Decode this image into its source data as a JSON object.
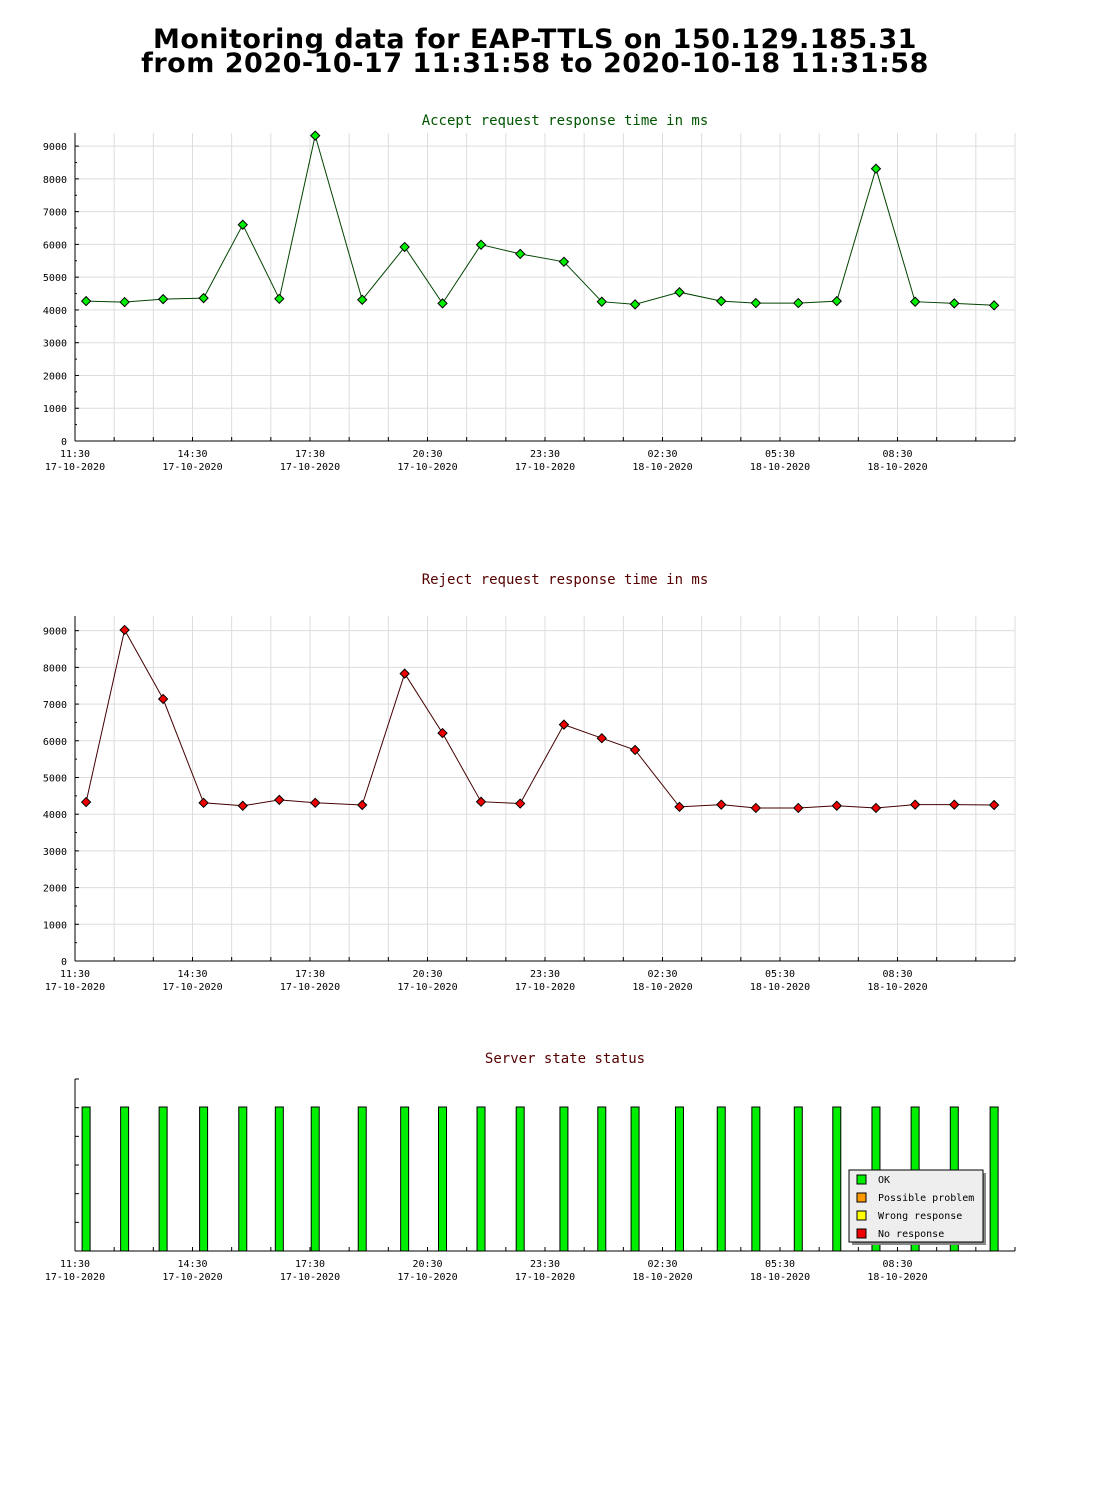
{
  "page": {
    "title_line1": "Monitoring data for EAP-TTLS on 150.129.185.31",
    "title_line2": "from 2020-10-17 11:31:58 to 2020-10-18 11:31:58"
  },
  "chart_data": [
    {
      "type": "line",
      "title": "Accept request response time in ms",
      "title_color": "#005500",
      "line_color": "#004400",
      "marker_color": "#00ee00",
      "x_range": [
        "2020-10-17 11:30",
        "2020-10-18 11:30"
      ],
      "x_ticks": [
        {
          "time": "11:30",
          "date": "17-10-2020"
        },
        {
          "time": "14:30",
          "date": "17-10-2020"
        },
        {
          "time": "17:30",
          "date": "17-10-2020"
        },
        {
          "time": "20:30",
          "date": "17-10-2020"
        },
        {
          "time": "23:30",
          "date": "17-10-2020"
        },
        {
          "time": "02:30",
          "date": "18-10-2020"
        },
        {
          "time": "05:30",
          "date": "18-10-2020"
        },
        {
          "time": "08:30",
          "date": "18-10-2020"
        }
      ],
      "ylim": [
        0,
        9400
      ],
      "y_ticks": [
        0,
        1000,
        2000,
        3000,
        4000,
        5000,
        6000,
        7000,
        8000,
        9000
      ],
      "grid": true,
      "points": [
        {
          "x": "2020-10-17 11:47",
          "y": 4270
        },
        {
          "x": "2020-10-17 12:46",
          "y": 4240
        },
        {
          "x": "2020-10-17 13:45",
          "y": 4330
        },
        {
          "x": "2020-10-17 14:47",
          "y": 4360
        },
        {
          "x": "2020-10-17 15:47",
          "y": 6600
        },
        {
          "x": "2020-10-17 16:43",
          "y": 4340
        },
        {
          "x": "2020-10-17 17:38",
          "y": 9320
        },
        {
          "x": "2020-10-17 18:50",
          "y": 4310
        },
        {
          "x": "2020-10-17 19:55",
          "y": 5920
        },
        {
          "x": "2020-10-17 20:53",
          "y": 4200
        },
        {
          "x": "2020-10-17 21:52",
          "y": 5990
        },
        {
          "x": "2020-10-17 22:52",
          "y": 5710
        },
        {
          "x": "2020-10-17 23:59",
          "y": 5470
        },
        {
          "x": "2020-10-18 00:57",
          "y": 4250
        },
        {
          "x": "2020-10-18 01:48",
          "y": 4170
        },
        {
          "x": "2020-10-18 02:56",
          "y": 4540
        },
        {
          "x": "2020-10-18 04:00",
          "y": 4270
        },
        {
          "x": "2020-10-18 04:53",
          "y": 4210
        },
        {
          "x": "2020-10-18 05:58",
          "y": 4210
        },
        {
          "x": "2020-10-18 06:57",
          "y": 4270
        },
        {
          "x": "2020-10-18 07:57",
          "y": 8310
        },
        {
          "x": "2020-10-18 08:57",
          "y": 4250
        },
        {
          "x": "2020-10-18 09:57",
          "y": 4200
        },
        {
          "x": "2020-10-18 10:58",
          "y": 4140
        }
      ]
    },
    {
      "type": "line",
      "title": "Reject request response time in ms",
      "title_color": "#550000",
      "line_color": "#440000",
      "marker_color": "#ee0000",
      "x_range": [
        "2020-10-17 11:30",
        "2020-10-18 11:30"
      ],
      "x_ticks": [
        {
          "time": "11:30",
          "date": "17-10-2020"
        },
        {
          "time": "14:30",
          "date": "17-10-2020"
        },
        {
          "time": "17:30",
          "date": "17-10-2020"
        },
        {
          "time": "20:30",
          "date": "17-10-2020"
        },
        {
          "time": "23:30",
          "date": "17-10-2020"
        },
        {
          "time": "02:30",
          "date": "18-10-2020"
        },
        {
          "time": "05:30",
          "date": "18-10-2020"
        },
        {
          "time": "08:30",
          "date": "18-10-2020"
        }
      ],
      "ylim": [
        0,
        9400
      ],
      "y_ticks": [
        0,
        1000,
        2000,
        3000,
        4000,
        5000,
        6000,
        7000,
        8000,
        9000
      ],
      "grid": true,
      "points": [
        {
          "x": "2020-10-17 11:47",
          "y": 4330
        },
        {
          "x": "2020-10-17 12:46",
          "y": 9020
        },
        {
          "x": "2020-10-17 13:45",
          "y": 7140
        },
        {
          "x": "2020-10-17 14:47",
          "y": 4310
        },
        {
          "x": "2020-10-17 15:47",
          "y": 4230
        },
        {
          "x": "2020-10-17 16:43",
          "y": 4390
        },
        {
          "x": "2020-10-17 17:38",
          "y": 4310
        },
        {
          "x": "2020-10-17 18:50",
          "y": 4250
        },
        {
          "x": "2020-10-17 19:55",
          "y": 7830
        },
        {
          "x": "2020-10-17 20:53",
          "y": 6210
        },
        {
          "x": "2020-10-17 21:52",
          "y": 4340
        },
        {
          "x": "2020-10-17 22:52",
          "y": 4290
        },
        {
          "x": "2020-10-17 23:59",
          "y": 6440
        },
        {
          "x": "2020-10-18 00:57",
          "y": 6070
        },
        {
          "x": "2020-10-18 01:48",
          "y": 5750
        },
        {
          "x": "2020-10-18 02:56",
          "y": 4200
        },
        {
          "x": "2020-10-18 04:00",
          "y": 4260
        },
        {
          "x": "2020-10-18 04:53",
          "y": 4170
        },
        {
          "x": "2020-10-18 05:58",
          "y": 4170
        },
        {
          "x": "2020-10-18 06:57",
          "y": 4230
        },
        {
          "x": "2020-10-18 07:57",
          "y": 4170
        },
        {
          "x": "2020-10-18 08:57",
          "y": 4260
        },
        {
          "x": "2020-10-18 09:57",
          "y": 4260
        },
        {
          "x": "2020-10-18 10:58",
          "y": 4250
        }
      ]
    },
    {
      "type": "bar",
      "title": "Server state status",
      "title_color": "#550000",
      "x_range": [
        "2020-10-17 11:30",
        "2020-10-18 11:30"
      ],
      "x_ticks": [
        {
          "time": "11:30",
          "date": "17-10-2020"
        },
        {
          "time": "14:30",
          "date": "17-10-2020"
        },
        {
          "time": "17:30",
          "date": "17-10-2020"
        },
        {
          "time": "20:30",
          "date": "17-10-2020"
        },
        {
          "time": "23:30",
          "date": "17-10-2020"
        },
        {
          "time": "02:30",
          "date": "18-10-2020"
        },
        {
          "time": "05:30",
          "date": "18-10-2020"
        },
        {
          "time": "08:30",
          "date": "18-10-2020"
        }
      ],
      "grid": false,
      "legend_position": "bottom-right",
      "legend": [
        {
          "label": "OK",
          "color": "#00ee00"
        },
        {
          "label": "Possible problem",
          "color": "#ff9900"
        },
        {
          "label": "Wrong response",
          "color": "#ffff00"
        },
        {
          "label": "No response",
          "color": "#ee0000"
        }
      ],
      "bars": [
        {
          "x": "2020-10-17 11:47",
          "state": "OK"
        },
        {
          "x": "2020-10-17 12:46",
          "state": "OK"
        },
        {
          "x": "2020-10-17 13:45",
          "state": "OK"
        },
        {
          "x": "2020-10-17 14:47",
          "state": "OK"
        },
        {
          "x": "2020-10-17 15:47",
          "state": "OK"
        },
        {
          "x": "2020-10-17 16:43",
          "state": "OK"
        },
        {
          "x": "2020-10-17 17:38",
          "state": "OK"
        },
        {
          "x": "2020-10-17 18:50",
          "state": "OK"
        },
        {
          "x": "2020-10-17 19:55",
          "state": "OK"
        },
        {
          "x": "2020-10-17 20:53",
          "state": "OK"
        },
        {
          "x": "2020-10-17 21:52",
          "state": "OK"
        },
        {
          "x": "2020-10-17 22:52",
          "state": "OK"
        },
        {
          "x": "2020-10-17 23:59",
          "state": "OK"
        },
        {
          "x": "2020-10-18 00:57",
          "state": "OK"
        },
        {
          "x": "2020-10-18 01:48",
          "state": "OK"
        },
        {
          "x": "2020-10-18 02:56",
          "state": "OK"
        },
        {
          "x": "2020-10-18 04:00",
          "state": "OK"
        },
        {
          "x": "2020-10-18 04:53",
          "state": "OK"
        },
        {
          "x": "2020-10-18 05:58",
          "state": "OK"
        },
        {
          "x": "2020-10-18 06:57",
          "state": "OK"
        },
        {
          "x": "2020-10-18 07:57",
          "state": "OK"
        },
        {
          "x": "2020-10-18 08:57",
          "state": "OK"
        },
        {
          "x": "2020-10-18 09:57",
          "state": "OK"
        },
        {
          "x": "2020-10-18 10:58",
          "state": "OK"
        }
      ]
    }
  ]
}
